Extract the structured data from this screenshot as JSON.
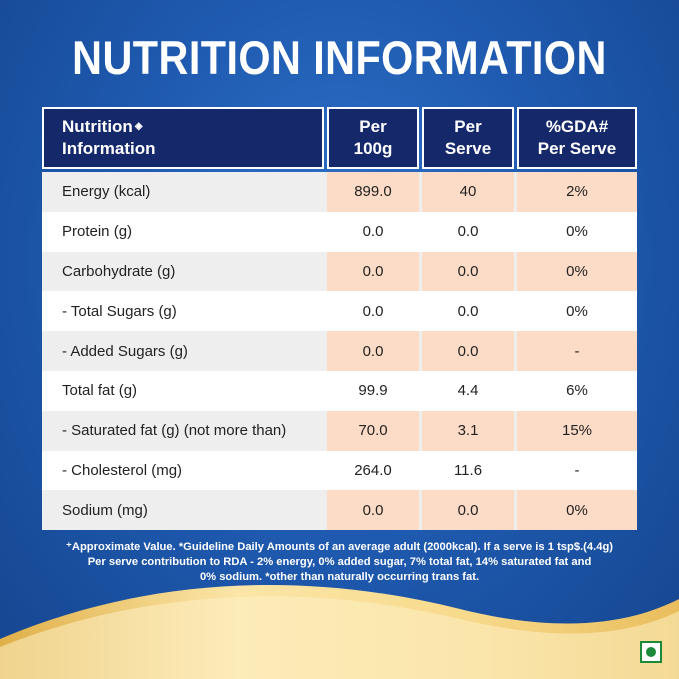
{
  "title": "NUTRITION INFORMATION",
  "headers": {
    "col0_line1": "Nutrition",
    "col0_mark": "◈",
    "col0_line2": "Information",
    "col1_line1": "Per",
    "col1_line2": "100g",
    "col2_line1": "Per",
    "col2_line2": "Serve",
    "col3_line1": "%GDA#",
    "col3_line2": "Per Serve"
  },
  "rows": [
    {
      "label": "Energy (kcal)",
      "per100g": "899.0",
      "perServe": "40",
      "gda": "2%"
    },
    {
      "label": "Protein (g)",
      "per100g": "0.0",
      "perServe": "0.0",
      "gda": "0%"
    },
    {
      "label": "Carbohydrate (g)",
      "per100g": "0.0",
      "perServe": "0.0",
      "gda": "0%"
    },
    {
      "label": "- Total Sugars (g)",
      "per100g": "0.0",
      "perServe": "0.0",
      "gda": "0%"
    },
    {
      "label": "- Added Sugars (g)",
      "per100g": "0.0",
      "perServe": "0.0",
      "gda": "-"
    },
    {
      "label": "Total fat (g)",
      "per100g": "99.9",
      "perServe": "4.4",
      "gda": "6%"
    },
    {
      "label": "- Saturated fat (g) (not more than)",
      "per100g": "70.0",
      "perServe": "3.1",
      "gda": "15%"
    },
    {
      "label": "- Cholesterol (mg)",
      "per100g": "264.0",
      "perServe": "11.6",
      "gda": "-"
    },
    {
      "label": "Sodium (mg)",
      "per100g": "0.0",
      "perServe": "0.0",
      "gda": "0%"
    }
  ],
  "footnote": {
    "line1": "⁺Approximate Value. *Guideline Daily Amounts of an average adult (2000kcal). If a serve is 1 tsp$.(4.4g)",
    "line2": "Per serve contribution to RDA - 2% energy, 0% added sugar, 7% total fat, 14% saturated fat and",
    "line3": "0% sodium. *other than naturally occurring trans fat."
  },
  "colors": {
    "background": "#1f5bb1",
    "header_bg": "#15296a",
    "highlight_cell": "#fcdcc7",
    "row_alt": "#eeeeee",
    "swoosh_gold": "#f2cf73"
  },
  "icons": {
    "veg_mark": "veg-symbol-icon"
  }
}
